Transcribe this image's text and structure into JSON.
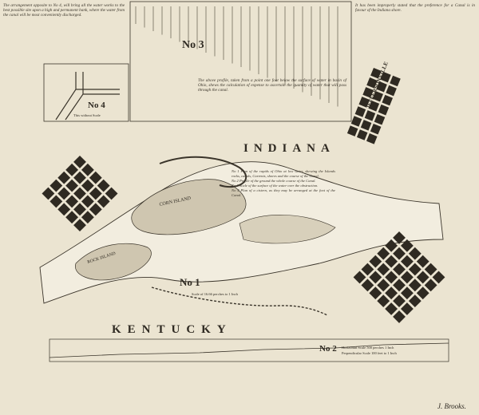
{
  "regions": {
    "north": "INDIANA",
    "south": "KENTUCKY"
  },
  "places": [
    "JEFFERSONVILLE",
    "CORN ISLAND",
    "ROCK ISLAND"
  ],
  "figures": [
    {
      "label": "No 1",
      "caption": "Scale of 16.66 perches to 1 Inch"
    },
    {
      "label": "No 2",
      "caption_lines": [
        "Horizontal Scale 500 perches 1 Inch",
        "Perpendicular Scale 100 feet to 1 Inch"
      ]
    },
    {
      "label": "No 3"
    },
    {
      "label": "No 4",
      "caption": "This without Scale"
    }
  ],
  "legend": [
    "No 1 Plan of the rapids of Ohio at low water, shewing the Islands rocks, canals, Currents, shores and the course of the Canal.",
    "No 2 Profile of the ground the whole course of the Canal.",
    "No 3 Scale of the surface of the water over the obstruction.",
    "No 4 Plan of a cistern, as they may be arranged at the foot of the Canal."
  ],
  "notes": {
    "top_left": "The arrangement opposite to No 4, will bring all the water works to the best possible site upon a high and permanent bank, where the water from the canal will be most conveniently discharged.",
    "top_right": "It has been improperly stated that the preference for a Canal is in favour of the Indiana shore.",
    "bottom": "The above profile, taken from a point one foot below the surface of water in basin of Ohio, shews the calculation of expense to ascertain the quantity of water that will pass through the canal."
  },
  "signature": "J. Brooks."
}
